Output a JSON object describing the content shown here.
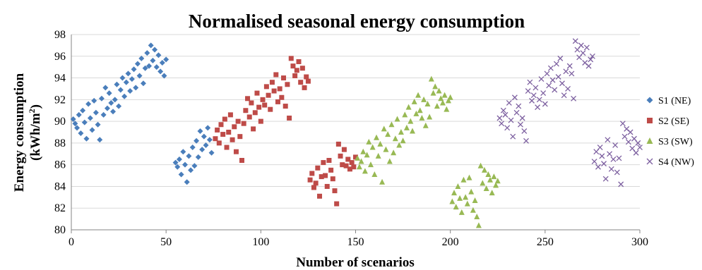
{
  "chart_data": {
    "type": "scatter",
    "title": "Normalised seasonal energy consumption",
    "xlabel": "Number of scenarios",
    "ylabel_line1": "Energy consumption",
    "ylabel_line2_prefix": "(kWh/m",
    "ylabel_line2_sup": "2",
    "ylabel_line2_suffix": ")",
    "xlim": [
      0,
      300
    ],
    "ylim": [
      80,
      98
    ],
    "x_ticks": [
      0,
      50,
      100,
      150,
      200,
      250,
      300
    ],
    "y_ticks": [
      80,
      82,
      84,
      86,
      88,
      90,
      92,
      94,
      96,
      98
    ],
    "grid": "horizontal",
    "legend_position": "right",
    "series": [
      {
        "name": "S1 (NE)",
        "marker": "diamond",
        "color": "#4a7ebb",
        "points": [
          [
            1,
            90.2
          ],
          [
            2,
            89.8
          ],
          [
            3,
            89.4
          ],
          [
            4,
            90.6
          ],
          [
            5,
            88.9
          ],
          [
            6,
            91.0
          ],
          [
            7,
            89.9
          ],
          [
            8,
            88.4
          ],
          [
            9,
            91.6
          ],
          [
            10,
            90.3
          ],
          [
            11,
            89.2
          ],
          [
            12,
            91.9
          ],
          [
            13,
            90.8
          ],
          [
            14,
            89.7
          ],
          [
            15,
            88.3
          ],
          [
            16,
            92.1
          ],
          [
            17,
            90.6
          ],
          [
            18,
            93.1
          ],
          [
            19,
            91.2
          ],
          [
            20,
            92.6
          ],
          [
            21,
            91.7
          ],
          [
            22,
            90.9
          ],
          [
            23,
            92.0
          ],
          [
            24,
            93.4
          ],
          [
            25,
            91.4
          ],
          [
            26,
            92.9
          ],
          [
            27,
            94.0
          ],
          [
            28,
            92.3
          ],
          [
            29,
            93.6
          ],
          [
            30,
            94.4
          ],
          [
            31,
            92.8
          ],
          [
            32,
            93.9
          ],
          [
            33,
            94.8
          ],
          [
            34,
            93.1
          ],
          [
            35,
            95.3
          ],
          [
            36,
            94.2
          ],
          [
            37,
            95.8
          ],
          [
            38,
            93.5
          ],
          [
            39,
            94.9
          ],
          [
            40,
            96.3
          ],
          [
            41,
            95.1
          ],
          [
            42,
            97.0
          ],
          [
            43,
            95.6
          ],
          [
            44,
            96.6
          ],
          [
            45,
            95.0
          ],
          [
            46,
            96.1
          ],
          [
            47,
            94.6
          ],
          [
            48,
            95.4
          ],
          [
            49,
            94.2
          ],
          [
            50,
            95.7
          ],
          [
            55,
            86.2
          ],
          [
            56,
            85.8
          ],
          [
            57,
            86.5
          ],
          [
            58,
            85.1
          ],
          [
            59,
            87.2
          ],
          [
            60,
            86.0
          ],
          [
            61,
            84.4
          ],
          [
            62,
            86.8
          ],
          [
            63,
            85.5
          ],
          [
            64,
            87.6
          ],
          [
            65,
            85.9
          ],
          [
            66,
            88.2
          ],
          [
            67,
            86.7
          ],
          [
            68,
            89.1
          ],
          [
            69,
            87.4
          ],
          [
            70,
            88.6
          ],
          [
            71,
            87.8
          ],
          [
            72,
            89.4
          ],
          [
            73,
            88.3
          ],
          [
            74,
            87.1
          ]
        ]
      },
      {
        "name": "S2 (SE)",
        "marker": "square",
        "color": "#be4b48",
        "points": [
          [
            76,
            88.4
          ],
          [
            77,
            89.2
          ],
          [
            78,
            88.0
          ],
          [
            79,
            89.7
          ],
          [
            80,
            88.8
          ],
          [
            81,
            90.2
          ],
          [
            82,
            87.6
          ],
          [
            83,
            89.0
          ],
          [
            84,
            90.6
          ],
          [
            85,
            88.3
          ],
          [
            86,
            89.5
          ],
          [
            87,
            87.2
          ],
          [
            88,
            90.0
          ],
          [
            89,
            88.6
          ],
          [
            90,
            86.4
          ],
          [
            91,
            89.8
          ],
          [
            92,
            91.0
          ],
          [
            93,
            92.1
          ],
          [
            94,
            90.4
          ],
          [
            95,
            91.7
          ],
          [
            96,
            89.3
          ],
          [
            97,
            90.8
          ],
          [
            98,
            92.6
          ],
          [
            99,
            91.3
          ],
          [
            100,
            90.0
          ],
          [
            101,
            92.0
          ],
          [
            102,
            91.5
          ],
          [
            103,
            93.2
          ],
          [
            104,
            92.4
          ],
          [
            105,
            91.1
          ],
          [
            106,
            93.6
          ],
          [
            107,
            92.8
          ],
          [
            108,
            94.3
          ],
          [
            109,
            91.8
          ],
          [
            110,
            93.0
          ],
          [
            111,
            92.2
          ],
          [
            112,
            94.0
          ],
          [
            113,
            91.4
          ],
          [
            114,
            93.4
          ],
          [
            115,
            90.3
          ],
          [
            116,
            95.8
          ],
          [
            117,
            95.1
          ],
          [
            118,
            94.2
          ],
          [
            119,
            94.7
          ],
          [
            120,
            95.5
          ],
          [
            121,
            93.6
          ],
          [
            122,
            94.9
          ],
          [
            123,
            93.1
          ],
          [
            124,
            94.1
          ],
          [
            125,
            93.7
          ],
          [
            126,
            84.6
          ],
          [
            127,
            85.2
          ],
          [
            128,
            83.9
          ],
          [
            129,
            84.3
          ],
          [
            130,
            85.7
          ],
          [
            131,
            83.1
          ],
          [
            132,
            84.9
          ],
          [
            133,
            86.2
          ],
          [
            134,
            85.0
          ],
          [
            135,
            84.0
          ],
          [
            136,
            86.4
          ],
          [
            137,
            85.5
          ],
          [
            138,
            84.7
          ],
          [
            139,
            83.6
          ],
          [
            140,
            82.4
          ],
          [
            141,
            87.9
          ],
          [
            142,
            86.8
          ],
          [
            143,
            86.0
          ],
          [
            144,
            87.4
          ],
          [
            145,
            85.9
          ],
          [
            146,
            86.5
          ],
          [
            147,
            85.6
          ],
          [
            148,
            86.2
          ],
          [
            149,
            85.8
          ],
          [
            150,
            86.7
          ]
        ]
      },
      {
        "name": "S3 (SW)",
        "marker": "triangle",
        "color": "#98b954",
        "points": [
          [
            151,
            86.6
          ],
          [
            152,
            85.8
          ],
          [
            153,
            86.3
          ],
          [
            154,
            87.2
          ],
          [
            155,
            85.4
          ],
          [
            156,
            86.9
          ],
          [
            157,
            88.1
          ],
          [
            158,
            86.0
          ],
          [
            159,
            87.6
          ],
          [
            160,
            85.1
          ],
          [
            161,
            88.5
          ],
          [
            162,
            86.8
          ],
          [
            163,
            87.9
          ],
          [
            164,
            84.4
          ],
          [
            165,
            89.3
          ],
          [
            166,
            87.4
          ],
          [
            167,
            88.8
          ],
          [
            168,
            86.3
          ],
          [
            169,
            89.7
          ],
          [
            170,
            87.1
          ],
          [
            171,
            88.4
          ],
          [
            172,
            90.2
          ],
          [
            173,
            87.8
          ],
          [
            174,
            89.0
          ],
          [
            175,
            88.2
          ],
          [
            176,
            90.6
          ],
          [
            177,
            89.4
          ],
          [
            178,
            91.3
          ],
          [
            179,
            90.0
          ],
          [
            180,
            89.1
          ],
          [
            181,
            91.8
          ],
          [
            182,
            90.7
          ],
          [
            183,
            92.4
          ],
          [
            184,
            91.0
          ],
          [
            185,
            90.3
          ],
          [
            186,
            92.0
          ],
          [
            187,
            89.6
          ],
          [
            188,
            91.6
          ],
          [
            189,
            90.4
          ],
          [
            190,
            93.9
          ],
          [
            191,
            92.6
          ],
          [
            192,
            93.2
          ],
          [
            193,
            91.4
          ],
          [
            194,
            92.8
          ],
          [
            195,
            92.1
          ],
          [
            196,
            91.7
          ],
          [
            197,
            92.4
          ],
          [
            198,
            91.1
          ],
          [
            199,
            91.9
          ],
          [
            200,
            92.2
          ],
          [
            201,
            82.6
          ],
          [
            202,
            83.4
          ],
          [
            203,
            82.1
          ],
          [
            204,
            84.0
          ],
          [
            205,
            82.9
          ],
          [
            206,
            81.6
          ],
          [
            207,
            84.6
          ],
          [
            208,
            83.0
          ],
          [
            209,
            82.4
          ],
          [
            210,
            84.8
          ],
          [
            211,
            83.5
          ],
          [
            212,
            81.8
          ],
          [
            213,
            82.7
          ],
          [
            214,
            81.2
          ],
          [
            215,
            80.4
          ],
          [
            216,
            85.9
          ],
          [
            217,
            84.3
          ],
          [
            218,
            85.5
          ],
          [
            219,
            83.8
          ],
          [
            220,
            85.1
          ],
          [
            221,
            84.6
          ],
          [
            222,
            83.4
          ],
          [
            223,
            84.9
          ],
          [
            224,
            84.1
          ],
          [
            225,
            84.5
          ]
        ]
      },
      {
        "name": "S4 (NW)",
        "marker": "x",
        "color": "#7d60a0",
        "points": [
          [
            226,
            90.3
          ],
          [
            227,
            89.8
          ],
          [
            228,
            91.0
          ],
          [
            229,
            90.6
          ],
          [
            230,
            89.4
          ],
          [
            231,
            91.7
          ],
          [
            232,
            90.1
          ],
          [
            233,
            88.6
          ],
          [
            234,
            92.2
          ],
          [
            235,
            90.8
          ],
          [
            236,
            91.4
          ],
          [
            237,
            89.7
          ],
          [
            238,
            90.3
          ],
          [
            239,
            89.1
          ],
          [
            240,
            88.2
          ],
          [
            241,
            92.8
          ],
          [
            242,
            93.6
          ],
          [
            243,
            91.9
          ],
          [
            244,
            92.4
          ],
          [
            245,
            93.1
          ],
          [
            246,
            91.3
          ],
          [
            247,
            92.0
          ],
          [
            248,
            93.9
          ],
          [
            249,
            92.6
          ],
          [
            250,
            91.6
          ],
          [
            251,
            94.4
          ],
          [
            252,
            93.3
          ],
          [
            253,
            94.9
          ],
          [
            254,
            93.8
          ],
          [
            255,
            92.9
          ],
          [
            256,
            95.3
          ],
          [
            257,
            94.1
          ],
          [
            258,
            95.8
          ],
          [
            259,
            93.5
          ],
          [
            260,
            92.4
          ],
          [
            261,
            94.6
          ],
          [
            262,
            93.0
          ],
          [
            263,
            95.1
          ],
          [
            264,
            94.4
          ],
          [
            265,
            92.1
          ],
          [
            266,
            97.4
          ],
          [
            267,
            96.6
          ],
          [
            268,
            95.9
          ],
          [
            269,
            97.0
          ],
          [
            270,
            96.3
          ],
          [
            271,
            95.4
          ],
          [
            272,
            96.8
          ],
          [
            273,
            95.1
          ],
          [
            274,
            95.7
          ],
          [
            275,
            96.0
          ],
          [
            276,
            86.3
          ],
          [
            277,
            87.2
          ],
          [
            278,
            85.8
          ],
          [
            279,
            87.6
          ],
          [
            280,
            86.8
          ],
          [
            281,
            86.1
          ],
          [
            282,
            84.7
          ],
          [
            283,
            88.3
          ],
          [
            284,
            87.0
          ],
          [
            285,
            85.6
          ],
          [
            286,
            86.5
          ],
          [
            287,
            87.8
          ],
          [
            288,
            85.3
          ],
          [
            289,
            86.6
          ],
          [
            290,
            84.2
          ],
          [
            291,
            89.8
          ],
          [
            292,
            88.6
          ],
          [
            293,
            89.3
          ],
          [
            294,
            88.1
          ],
          [
            295,
            89.0
          ],
          [
            296,
            87.5
          ],
          [
            297,
            88.4
          ],
          [
            298,
            87.1
          ],
          [
            299,
            88.0
          ],
          [
            300,
            87.6
          ]
        ]
      }
    ]
  }
}
